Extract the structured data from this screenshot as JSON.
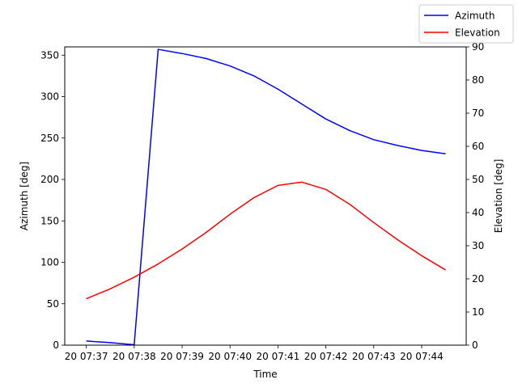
{
  "chart_data": {
    "type": "line",
    "xlabel": "Time",
    "ylabel_left": "Azimuth [deg]",
    "ylabel_right": "Elevation [deg]",
    "x_tick_labels": [
      "20 07:37",
      "20 07:38",
      "20 07:39",
      "20 07:40",
      "20 07:41",
      "20 07:42",
      "20 07:43",
      "20 07:44"
    ],
    "x_tick_minutes": [
      0,
      1,
      2,
      3,
      4,
      5,
      6,
      7
    ],
    "xlim_minutes": [
      -0.45,
      7.93
    ],
    "ylim_left": [
      0,
      360
    ],
    "yticks_left": [
      0,
      50,
      100,
      150,
      200,
      250,
      300,
      350
    ],
    "ylim_right": [
      0,
      90
    ],
    "yticks_right": [
      0,
      10,
      20,
      30,
      40,
      50,
      60,
      70,
      80,
      90
    ],
    "legend_position": "top-right",
    "grid": false,
    "x_minutes": [
      0,
      0.5,
      1.0,
      1.5,
      2.0,
      2.5,
      3.0,
      3.5,
      4.0,
      4.5,
      5.0,
      5.5,
      6.0,
      6.5,
      7.0,
      7.5
    ],
    "series": [
      {
        "name": "Azimuth",
        "axis": "left",
        "color": "#0000ff",
        "values": [
          5,
          3,
          0.5,
          357,
          352,
          346,
          337,
          325,
          309,
          291,
          273,
          259,
          248,
          241,
          235,
          231
        ]
      },
      {
        "name": "Elevation",
        "axis": "right",
        "color": "#ff0000",
        "values": [
          14,
          17,
          20.5,
          24.5,
          29,
          34,
          39.5,
          44.5,
          48.2,
          49.2,
          47,
          42.5,
          37,
          31.8,
          27,
          22.7
        ]
      }
    ]
  }
}
